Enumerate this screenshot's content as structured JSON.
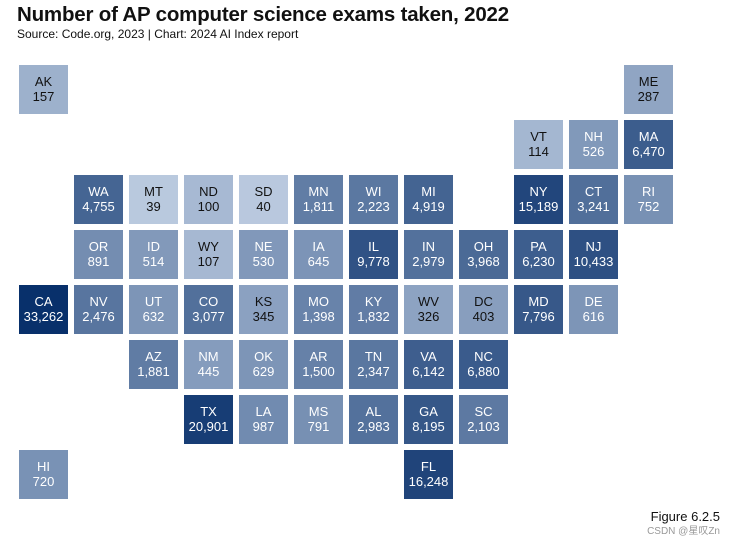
{
  "title": "Number of AP computer science exams taken, 2022",
  "subtitle": "Source: Code.org, 2023 | Chart: 2024 AI Index report",
  "figure_label": "Figure 6.2.5",
  "watermark": "CSDN @星叹Zn",
  "chart_data": {
    "type": "tile-map",
    "metric": "Number of AP computer science exams taken",
    "year": 2022,
    "states": [
      {
        "abbr": "AK",
        "value": 157,
        "label": "157",
        "row": 0,
        "col": 0
      },
      {
        "abbr": "ME",
        "value": 287,
        "label": "287",
        "row": 0,
        "col": 11
      },
      {
        "abbr": "VT",
        "value": 114,
        "label": "114",
        "row": 1,
        "col": 9
      },
      {
        "abbr": "NH",
        "value": 526,
        "label": "526",
        "row": 1,
        "col": 10
      },
      {
        "abbr": "MA",
        "value": 6470,
        "label": "6,470",
        "row": 1,
        "col": 11
      },
      {
        "abbr": "WA",
        "value": 4755,
        "label": "4,755",
        "row": 2,
        "col": 1
      },
      {
        "abbr": "MT",
        "value": 39,
        "label": "39",
        "row": 2,
        "col": 2
      },
      {
        "abbr": "ND",
        "value": 100,
        "label": "100",
        "row": 2,
        "col": 3
      },
      {
        "abbr": "SD",
        "value": 40,
        "label": "40",
        "row": 2,
        "col": 4
      },
      {
        "abbr": "MN",
        "value": 1811,
        "label": "1,811",
        "row": 2,
        "col": 5
      },
      {
        "abbr": "WI",
        "value": 2223,
        "label": "2,223",
        "row": 2,
        "col": 6
      },
      {
        "abbr": "MI",
        "value": 4919,
        "label": "4,919",
        "row": 2,
        "col": 7
      },
      {
        "abbr": "NY",
        "value": 15189,
        "label": "15,189",
        "row": 2,
        "col": 9
      },
      {
        "abbr": "CT",
        "value": 3241,
        "label": "3,241",
        "row": 2,
        "col": 10
      },
      {
        "abbr": "RI",
        "value": 752,
        "label": "752",
        "row": 2,
        "col": 11
      },
      {
        "abbr": "OR",
        "value": 891,
        "label": "891",
        "row": 3,
        "col": 1
      },
      {
        "abbr": "ID",
        "value": 514,
        "label": "514",
        "row": 3,
        "col": 2
      },
      {
        "abbr": "WY",
        "value": 107,
        "label": "107",
        "row": 3,
        "col": 3
      },
      {
        "abbr": "NE",
        "value": 530,
        "label": "530",
        "row": 3,
        "col": 4
      },
      {
        "abbr": "IA",
        "value": 645,
        "label": "645",
        "row": 3,
        "col": 5
      },
      {
        "abbr": "IL",
        "value": 9778,
        "label": "9,778",
        "row": 3,
        "col": 6
      },
      {
        "abbr": "IN",
        "value": 2979,
        "label": "2,979",
        "row": 3,
        "col": 7
      },
      {
        "abbr": "OH",
        "value": 3968,
        "label": "3,968",
        "row": 3,
        "col": 8
      },
      {
        "abbr": "PA",
        "value": 6230,
        "label": "6,230",
        "row": 3,
        "col": 9
      },
      {
        "abbr": "NJ",
        "value": 10433,
        "label": "10,433",
        "row": 3,
        "col": 10
      },
      {
        "abbr": "CA",
        "value": 33262,
        "label": "33,262",
        "row": 4,
        "col": 0
      },
      {
        "abbr": "NV",
        "value": 2476,
        "label": "2,476",
        "row": 4,
        "col": 1
      },
      {
        "abbr": "UT",
        "value": 632,
        "label": "632",
        "row": 4,
        "col": 2
      },
      {
        "abbr": "CO",
        "value": 3077,
        "label": "3,077",
        "row": 4,
        "col": 3
      },
      {
        "abbr": "KS",
        "value": 345,
        "label": "345",
        "row": 4,
        "col": 4
      },
      {
        "abbr": "MO",
        "value": 1398,
        "label": "1,398",
        "row": 4,
        "col": 5
      },
      {
        "abbr": "KY",
        "value": 1832,
        "label": "1,832",
        "row": 4,
        "col": 6
      },
      {
        "abbr": "WV",
        "value": 326,
        "label": "326",
        "row": 4,
        "col": 7
      },
      {
        "abbr": "DC",
        "value": 403,
        "label": "403",
        "row": 4,
        "col": 8
      },
      {
        "abbr": "MD",
        "value": 7796,
        "label": "7,796",
        "row": 4,
        "col": 9
      },
      {
        "abbr": "DE",
        "value": 616,
        "label": "616",
        "row": 4,
        "col": 10
      },
      {
        "abbr": "AZ",
        "value": 1881,
        "label": "1,881",
        "row": 5,
        "col": 2
      },
      {
        "abbr": "NM",
        "value": 445,
        "label": "445",
        "row": 5,
        "col": 3
      },
      {
        "abbr": "OK",
        "value": 629,
        "label": "629",
        "row": 5,
        "col": 4
      },
      {
        "abbr": "AR",
        "value": 1500,
        "label": "1,500",
        "row": 5,
        "col": 5
      },
      {
        "abbr": "TN",
        "value": 2347,
        "label": "2,347",
        "row": 5,
        "col": 6
      },
      {
        "abbr": "VA",
        "value": 6142,
        "label": "6,142",
        "row": 5,
        "col": 7
      },
      {
        "abbr": "NC",
        "value": 6880,
        "label": "6,880",
        "row": 5,
        "col": 8
      },
      {
        "abbr": "TX",
        "value": 20901,
        "label": "20,901",
        "row": 6,
        "col": 3
      },
      {
        "abbr": "LA",
        "value": 987,
        "label": "987",
        "row": 6,
        "col": 4
      },
      {
        "abbr": "MS",
        "value": 791,
        "label": "791",
        "row": 6,
        "col": 5
      },
      {
        "abbr": "AL",
        "value": 2983,
        "label": "2,983",
        "row": 6,
        "col": 6
      },
      {
        "abbr": "GA",
        "value": 8195,
        "label": "8,195",
        "row": 6,
        "col": 7
      },
      {
        "abbr": "SC",
        "value": 2103,
        "label": "2,103",
        "row": 6,
        "col": 8
      },
      {
        "abbr": "HI",
        "value": 720,
        "label": "720",
        "row": 7,
        "col": 0
      },
      {
        "abbr": "FL",
        "value": 16248,
        "label": "16,248",
        "row": 7,
        "col": 7
      }
    ]
  }
}
